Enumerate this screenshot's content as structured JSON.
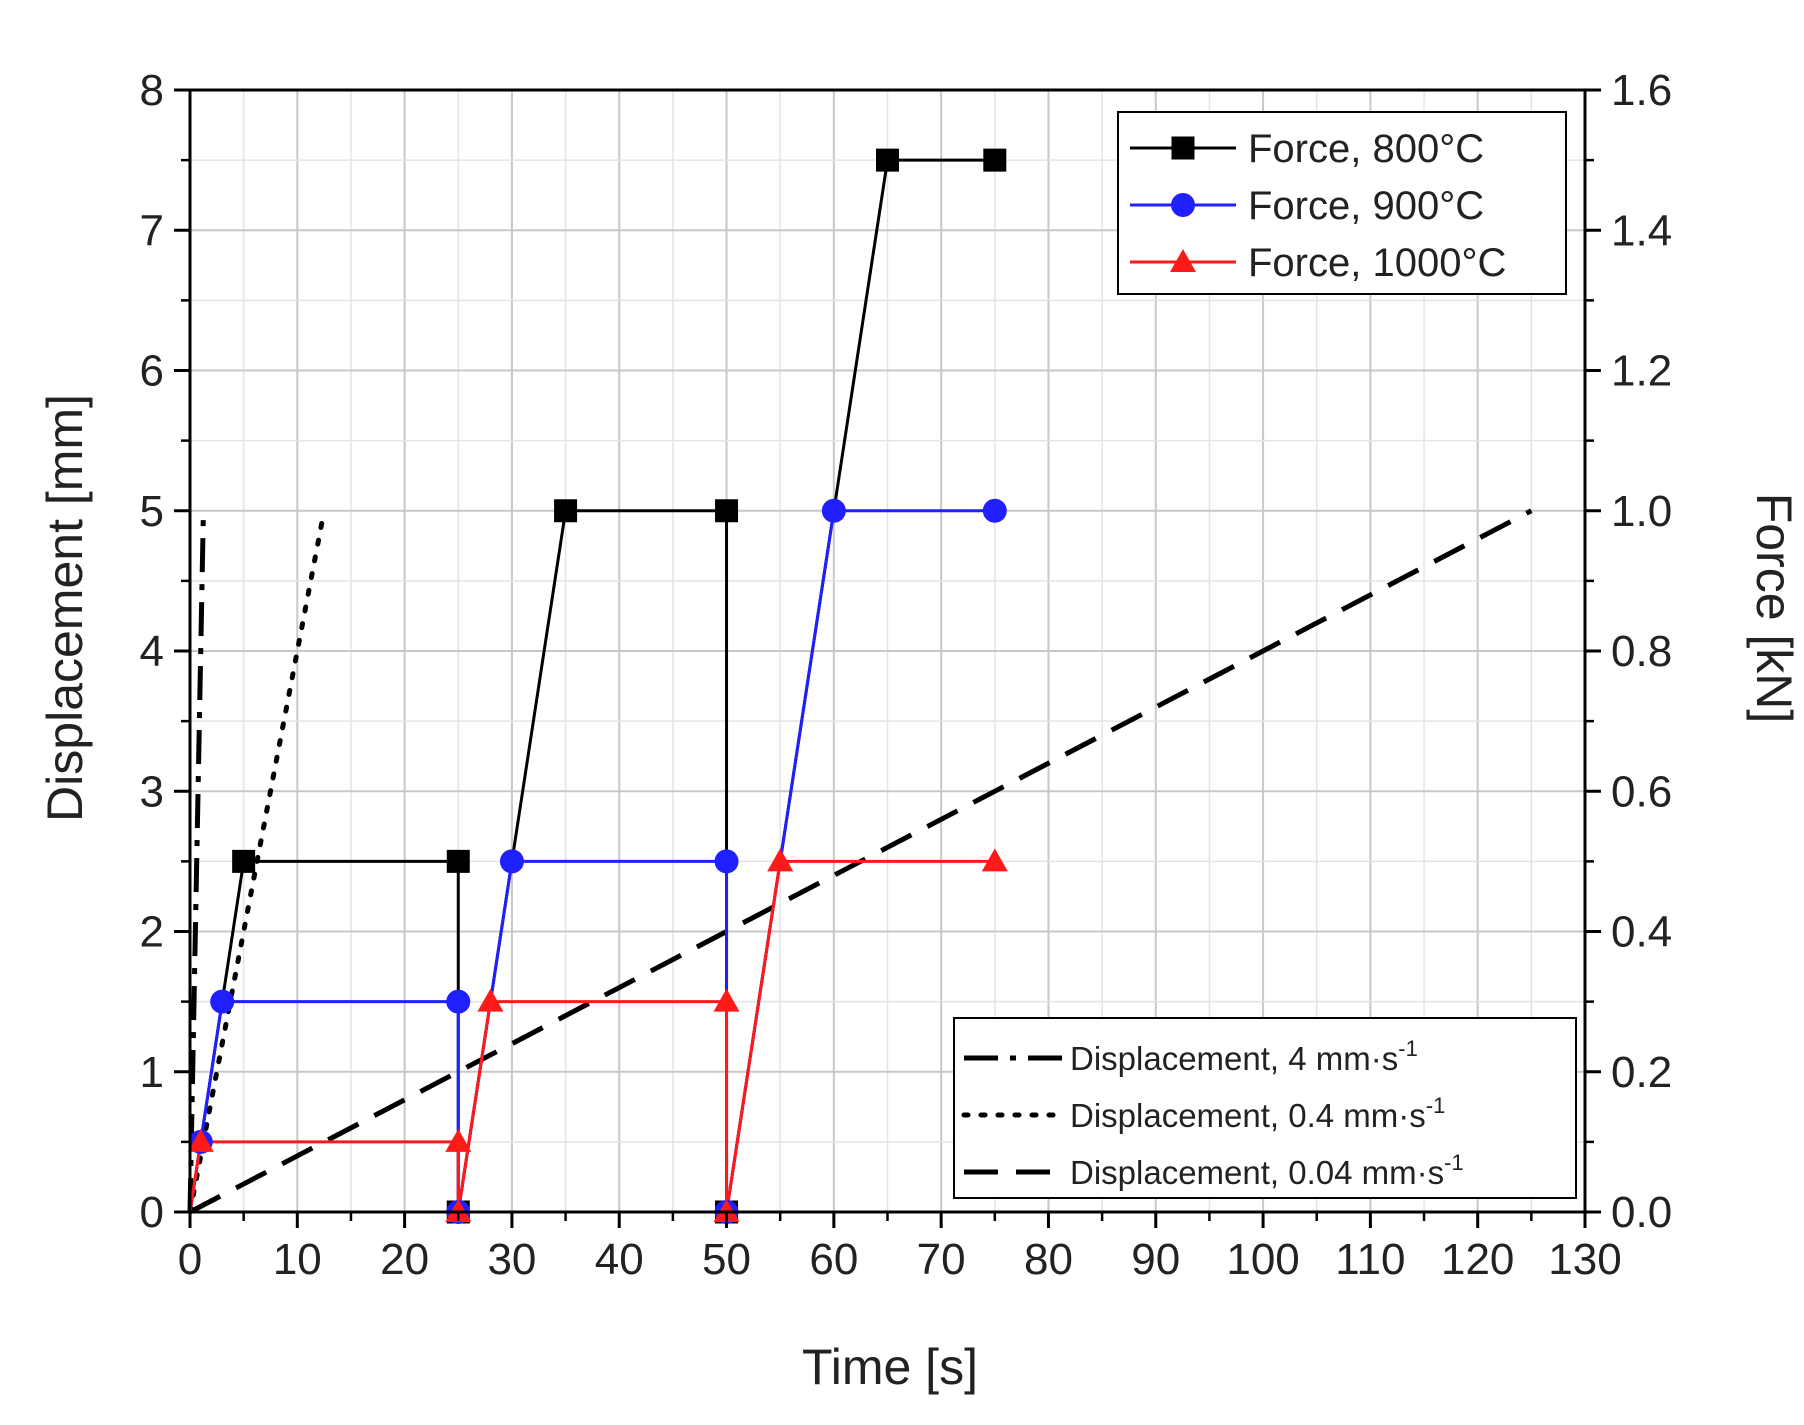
{
  "chart_data": {
    "type": "line",
    "xlabel": "Time [s]",
    "ylabel_left": "Displacement [mm]",
    "ylabel_right": "Force [kN]",
    "xlim": [
      0,
      130
    ],
    "ylim_left": [
      0,
      8
    ],
    "ylim_right": [
      0.0,
      1.6
    ],
    "x_ticks": [
      "0",
      "10",
      "20",
      "30",
      "40",
      "50",
      "60",
      "70",
      "80",
      "90",
      "100",
      "110",
      "120",
      "130"
    ],
    "y_left_ticks": [
      "0",
      "1",
      "2",
      "3",
      "4",
      "5",
      "6",
      "7",
      "8"
    ],
    "y_right_ticks": [
      "0.0",
      "0.2",
      "0.4",
      "0.6",
      "0.8",
      "1.0",
      "1.2",
      "1.4",
      "1.6"
    ],
    "grid": true,
    "force_series": [
      {
        "name": "Force, 800°C",
        "axis": "right",
        "color": "#000000",
        "marker": "square",
        "x": [
          0,
          5,
          25,
          25,
          35,
          50,
          50,
          65,
          75
        ],
        "y": [
          0,
          0.5,
          0.5,
          0,
          1.0,
          1.0,
          0,
          1.5,
          1.5
        ]
      },
      {
        "name": "Force, 900°C",
        "axis": "right",
        "color": "#1f1fff",
        "marker": "circle",
        "x": [
          0,
          1,
          3,
          25,
          25,
          30,
          50,
          50,
          60,
          75
        ],
        "y": [
          0,
          0.1,
          0.3,
          0.3,
          0,
          0.5,
          0.5,
          0,
          1.0,
          1.0
        ]
      },
      {
        "name": "Force, 1000°C",
        "axis": "right",
        "color": "#ff1a1a",
        "marker": "triangle",
        "x": [
          0,
          1,
          25,
          25,
          28,
          50,
          50,
          55,
          75
        ],
        "y": [
          0,
          0.1,
          0.1,
          0,
          0.3,
          0.3,
          0,
          0.5,
          0.5
        ]
      }
    ],
    "displacement_series": [
      {
        "name": "Displacement, 4 mm·s",
        "name_sup": "-1",
        "axis": "left",
        "color": "#000000",
        "dash": "dashdot",
        "x": [
          0,
          1.25
        ],
        "y": [
          0,
          5
        ]
      },
      {
        "name": "Displacement, 0.4 mm·s",
        "name_sup": "-1",
        "axis": "left",
        "color": "#000000",
        "dash": "dot",
        "x": [
          0,
          12.5
        ],
        "y": [
          0,
          5
        ]
      },
      {
        "name": "Displacement, 0.04 mm·s",
        "name_sup": "-1",
        "axis": "left",
        "color": "#000000",
        "dash": "dash",
        "x": [
          0,
          125
        ],
        "y": [
          0,
          5
        ]
      }
    ],
    "legend_force_position": "top-right",
    "legend_displacement_position": "bottom-right"
  }
}
